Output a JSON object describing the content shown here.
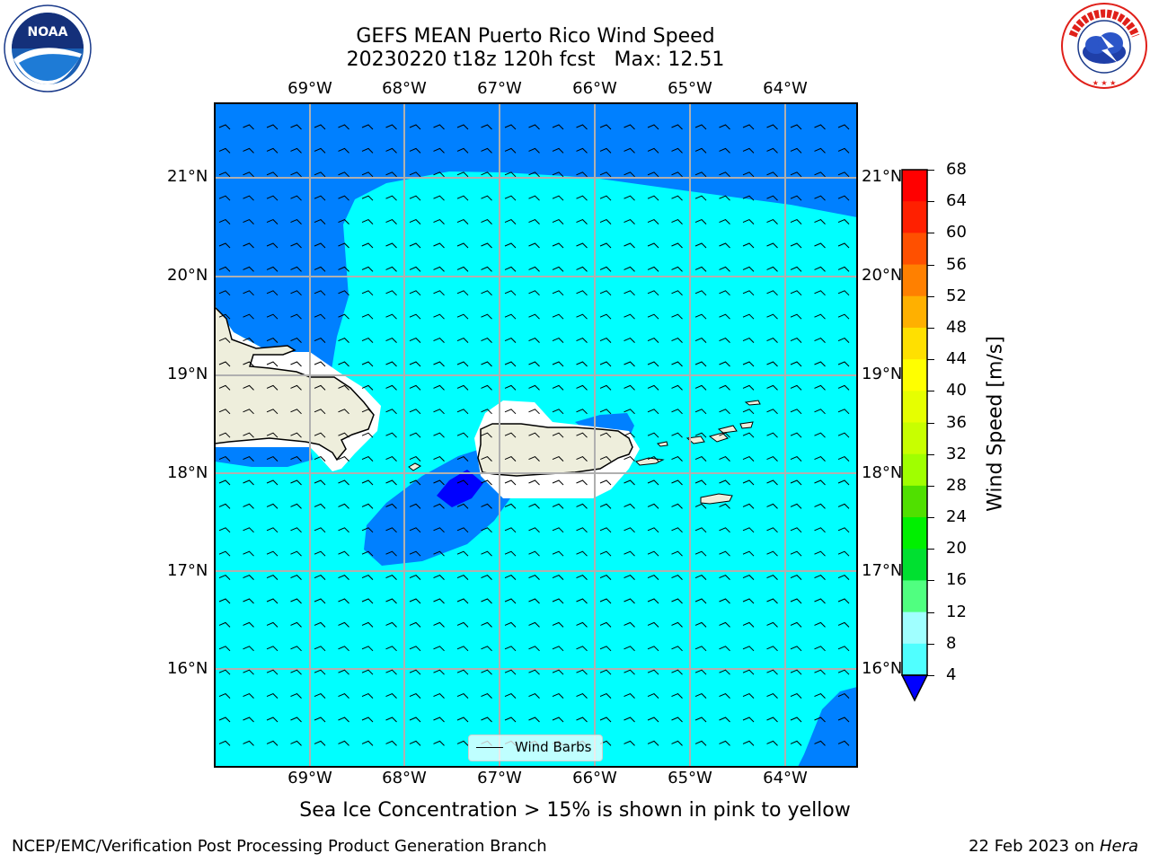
{
  "title": {
    "line1": "GEFS MEAN Puerto Rico Wind Speed",
    "line2": "20230220 t18z 120h fcst   Max: 12.51"
  },
  "map": {
    "lon_labels": [
      "69°W",
      "68°W",
      "67°W",
      "66°W",
      "65°W",
      "64°W"
    ],
    "lat_labels": [
      "21°N",
      "20°N",
      "19°N",
      "18°N",
      "17°N",
      "16°N"
    ],
    "colors": {
      "land": "#eeeedc",
      "ocean_4_8": "#0080ff",
      "ocean_8_12": "#00ffff",
      "ocean_below_4": "#0000ff",
      "grid": "#b0b0b0"
    },
    "legend_label": "Wind Barbs"
  },
  "colorbar": {
    "label": "Wind Speed [m/s]",
    "ticks": [
      "68",
      "64",
      "60",
      "56",
      "52",
      "48",
      "44",
      "40",
      "36",
      "32",
      "28",
      "24",
      "20",
      "16",
      "12",
      "8",
      "4"
    ],
    "colors": [
      "#ff0000",
      "#ff2000",
      "#ff5000",
      "#ff8000",
      "#ffb000",
      "#ffe000",
      "#ffff00",
      "#e6ff00",
      "#c8ff00",
      "#a0ff00",
      "#50e000",
      "#00f000",
      "#00e030",
      "#50ff80",
      "#a0ffff",
      "#50ffff",
      "#00ffff",
      "#0080ff",
      "#0000ff"
    ]
  },
  "note": "Sea Ice Concentration > 15% is shown in pink to yellow",
  "footer": {
    "left": "NCEP/EMC/Verification Post Processing Product Generation Branch",
    "right_prefix": "22 Feb 2023 on ",
    "right_host": "Hera"
  },
  "logos": {
    "noaa_text": "NOAA",
    "nws_text": "NATIONAL WEATHER SERVICE"
  }
}
